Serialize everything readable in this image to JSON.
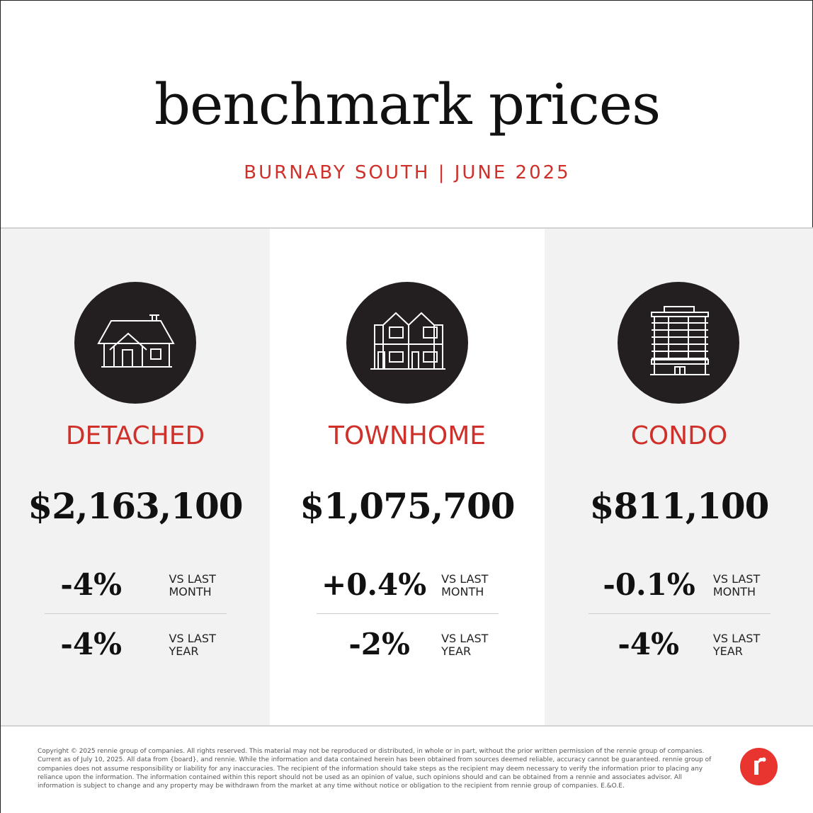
{
  "header": {
    "title": "benchmark prices",
    "subtitle": "BURNABY SOUTH | JUNE 2025"
  },
  "colors": {
    "accent": "#d0302a",
    "icon_bg": "#231f20",
    "panel_grey": "#f2f2f2",
    "logo": "#e8352f"
  },
  "columns": [
    {
      "icon": "detached-house-icon",
      "label": "DETACHED",
      "price": "$2,163,100",
      "month_change": "-4%",
      "month_label_1": "VS LAST",
      "month_label_2": "MONTH",
      "year_change": "-4%",
      "year_label_1": "VS LAST",
      "year_label_2": "YEAR"
    },
    {
      "icon": "townhome-icon",
      "label": "TOWNHOME",
      "price": "$1,075,700",
      "month_change": "+0.4%",
      "month_label_1": "VS LAST",
      "month_label_2": "MONTH",
      "year_change": "-2%",
      "year_label_1": "VS LAST",
      "year_label_2": "YEAR"
    },
    {
      "icon": "condo-building-icon",
      "label": "CONDO",
      "price": "$811,100",
      "month_change": "-0.1%",
      "month_label_1": "VS LAST",
      "month_label_2": "MONTH",
      "year_change": "-4%",
      "year_label_1": "VS LAST",
      "year_label_2": "YEAR"
    }
  ],
  "footer": {
    "disclaimer": "Copyright © 2025 rennie group of companies. All rights reserved. This material may not be reproduced or distributed, in whole or in part, without the prior written permission of the rennie group of companies. Current as of July 10, 2025. All data from {board}, and rennie. While the information and data contained herein has been obtained from sources deemed reliable, accuracy cannot be guaranteed. rennie group of companies does not assume responsibility or liability for any inaccuracies. The recipient of the information should take steps as the recipient may deem necessary to verify the information prior to placing any reliance upon the information. The information contained within this report should not be used as an opinion of value, such opinions should and can be obtained from a rennie and associates advisor. All information is subject to change and any property may be withdrawn from the market at any time without notice or obligation to the recipient from rennie group of companies. E.&O.E.",
    "logo": "rennie-logo-icon"
  }
}
